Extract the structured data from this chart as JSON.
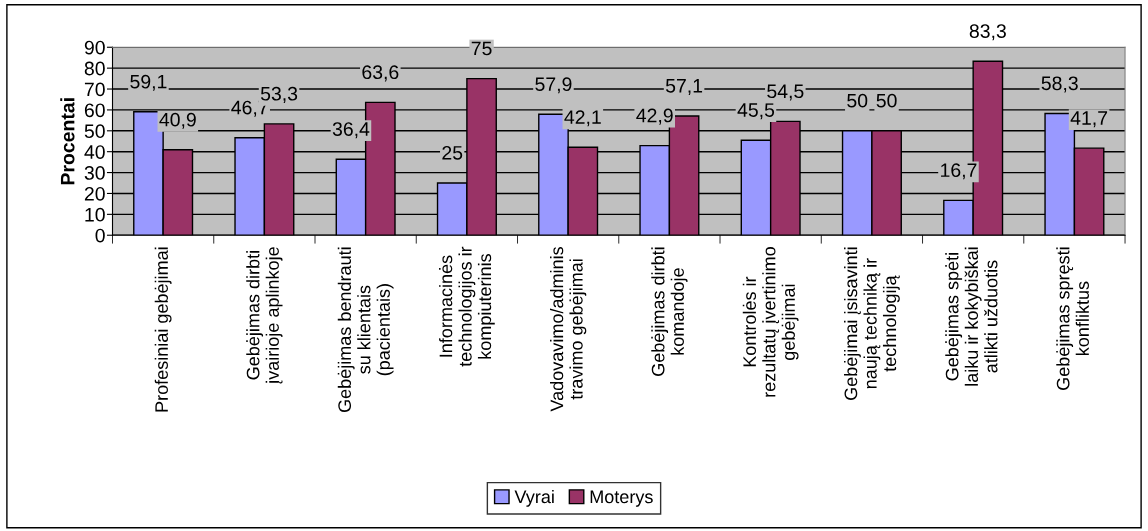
{
  "chart_data": {
    "type": "bar",
    "ylabel": "Procentai",
    "categories": [
      "Profesiniai gebėjimai",
      "Gebėjimas dirbti\nįvairioje aplinkoje",
      "Gebėjimas bendrauti\nsu klientais\n(pacientais)",
      "Informacinės\ntechnologijos ir\nkompiuterinis",
      "Vadovavimo/adminis\ntravimo gebėjimai",
      "Gebėjimas dirbti\nkomandoje",
      "Kontrolės ir\nrezultatų įvertinimo\ngebėjimai",
      "Gebėjimai įsisavinti\nnaują techniką ir\ntechnologiją",
      "Gebėjimas spėti\nlaiku ir kokybiškai\natlikti užduotis",
      "Gebėjimas spręsti\nkonfliktus"
    ],
    "series": [
      {
        "name": "Vyrai",
        "color": "#9999ff",
        "values": [
          59.1,
          46.7,
          36.4,
          25,
          57.9,
          42.9,
          45.5,
          50,
          16.7,
          58.3
        ],
        "value_labels": [
          "59,1",
          "46,7",
          "36,4",
          "25",
          "57,9",
          "42,9",
          "45,5",
          "50",
          "16,7",
          "58,3"
        ]
      },
      {
        "name": "Moterys",
        "color": "#993366",
        "values": [
          40.9,
          53.3,
          63.6,
          75,
          42.1,
          57.1,
          54.5,
          50,
          83.3,
          41.7
        ],
        "value_labels": [
          "40,9",
          "53,3",
          "63,6",
          "75",
          "42,1",
          "57,1",
          "54,5",
          "50",
          "83,3",
          "41,7"
        ]
      }
    ],
    "ylim": [
      0,
      90
    ],
    "yticks": [
      0,
      10,
      20,
      30,
      40,
      50,
      60,
      70,
      80,
      90
    ],
    "grid": "y",
    "legend": "bottom"
  }
}
